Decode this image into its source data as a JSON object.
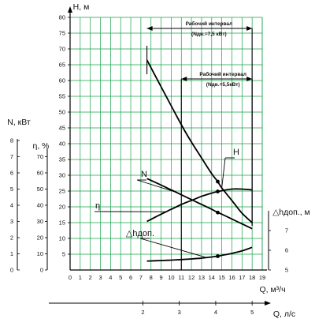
{
  "chart_data": {
    "type": "line",
    "axes": {
      "H": {
        "label": "H, м",
        "range": [
          0,
          80
        ],
        "ticks": [
          5,
          10,
          15,
          20,
          25,
          30,
          35,
          40,
          45,
          50,
          55,
          60,
          65,
          70,
          75,
          80
        ]
      },
      "N": {
        "label": "N, кВт",
        "range": [
          0,
          8
        ],
        "ticks": [
          0,
          1,
          2,
          3,
          4,
          5,
          6,
          7,
          8
        ]
      },
      "eta": {
        "label": "η, %",
        "range": [
          0,
          80
        ],
        "ticks": [
          0,
          10,
          20,
          30,
          40,
          50,
          60,
          70
        ]
      },
      "npsh": {
        "label": "△hдоп., м",
        "range": [
          5,
          8
        ],
        "ticks": [
          5,
          6,
          7
        ]
      },
      "Q_m3h": {
        "label": "Q, м³/ч",
        "range": [
          0,
          19
        ],
        "ticks": [
          0,
          1,
          2,
          3,
          4,
          5,
          6,
          7,
          8,
          9,
          10,
          11,
          12,
          13,
          14,
          15,
          16,
          17,
          18,
          19
        ]
      },
      "Q_ls": {
        "label": "Q, л/с",
        "range": [
          0,
          5.28
        ],
        "ticks": [
          2,
          3,
          4,
          5
        ]
      }
    },
    "grid": true,
    "series": [
      {
        "name": "H",
        "axis": "H",
        "color": "#000000",
        "x": [
          7.6,
          9,
          10,
          11,
          12,
          13,
          14,
          14.6,
          15,
          16,
          17,
          18
        ],
        "y": [
          66.5,
          58,
          52,
          46,
          40.5,
          35.5,
          30.5,
          28,
          26,
          22,
          18,
          15
        ]
      },
      {
        "name": "N",
        "axis": "N",
        "color": "#000000",
        "x": [
          7.6,
          9,
          10,
          11,
          12,
          13,
          14,
          14.6,
          15,
          16,
          17,
          18
        ],
        "y": [
          5.65,
          5.25,
          4.95,
          4.65,
          4.35,
          4.05,
          3.75,
          3.55,
          3.45,
          3.15,
          2.85,
          2.55
        ]
      },
      {
        "name": "η",
        "axis": "eta",
        "color": "#000000",
        "x": [
          7.6,
          9,
          10,
          11,
          12,
          13,
          14,
          14.6,
          15,
          16,
          17,
          18
        ],
        "y": [
          30,
          34.5,
          37.5,
          40.5,
          43,
          45.5,
          47.5,
          48.5,
          49,
          50,
          50,
          49.5
        ]
      },
      {
        "name": "△hдоп.",
        "axis": "npsh",
        "color": "#000000",
        "x": [
          7.6,
          9,
          10,
          11,
          12,
          13,
          14,
          14.6,
          15,
          16,
          17,
          18
        ],
        "y": [
          5.45,
          5.48,
          5.5,
          5.53,
          5.56,
          5.6,
          5.66,
          5.7,
          5.74,
          5.84,
          5.97,
          6.15
        ]
      }
    ],
    "operating_intervals": [
      {
        "label": "Рабочий интервал",
        "sublabel": "(Nдв.=7,5 кВт)",
        "q_from": 7.6,
        "q_to": 18,
        "h_level": 76.5
      },
      {
        "label": "Рабочий интервал",
        "sublabel": "(Nдв.=5,5кВт)",
        "q_from": 11,
        "q_to": 18,
        "h_level": 60.5
      }
    ],
    "markers": [
      {
        "series": "H",
        "x": 14.6,
        "y": 28
      },
      {
        "series": "N",
        "x": 14.6,
        "y": 3.55
      },
      {
        "series": "η",
        "x": 14.6,
        "y": 48.5
      },
      {
        "series": "△hдоп.",
        "x": 14.6,
        "y": 5.7
      }
    ],
    "colors": {
      "grid": "#16a34a",
      "curves": "#000000"
    }
  }
}
